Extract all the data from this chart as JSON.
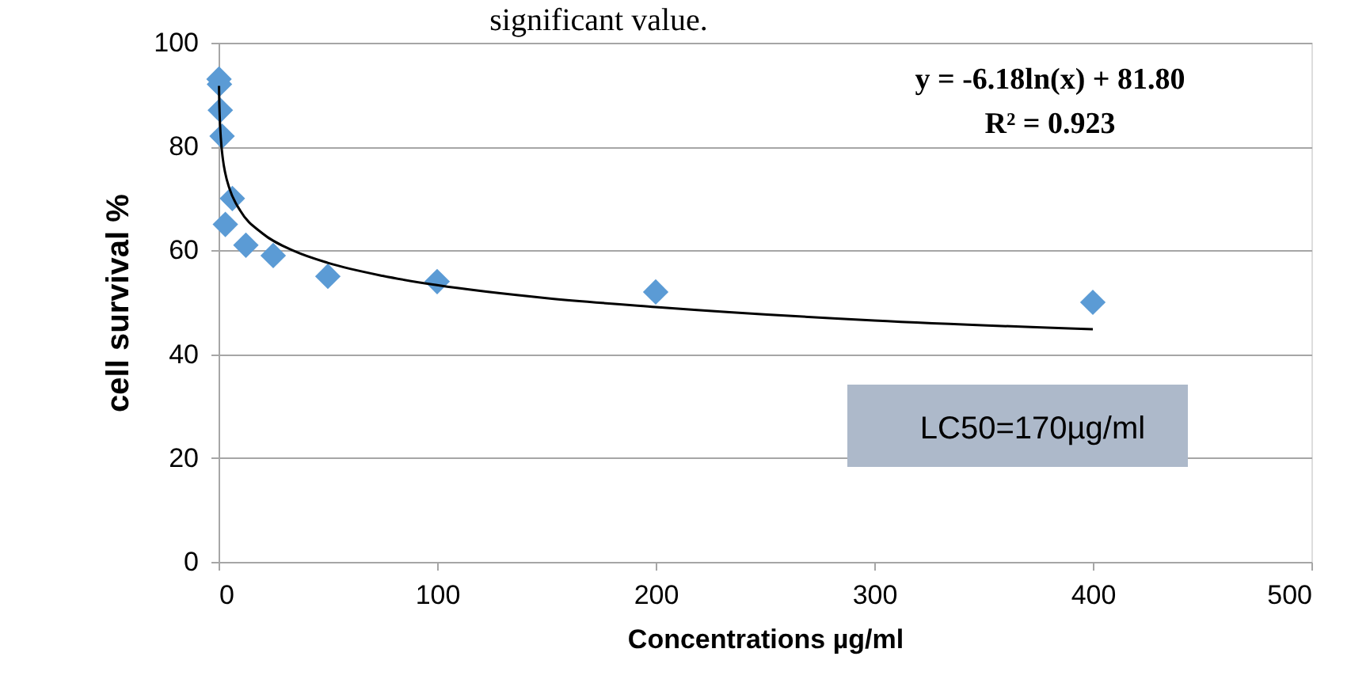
{
  "chart_data": {
    "type": "scatter",
    "title": "significant value.",
    "xlabel": "Concentrations µg/ml",
    "ylabel": "cell survival %",
    "annotations": [
      "y = -6.18ln(x) + 81.80",
      "R² = 0.923",
      "LC50=170µg/ml"
    ],
    "series": [
      {
        "color": "#5b9bd5",
        "marker": "diamond",
        "x": [
          0.2,
          0.4,
          0.8,
          1.6,
          3.1,
          6.3,
          12.5,
          25,
          50,
          100,
          200,
          400
        ],
        "values": [
          93,
          92,
          87,
          82,
          65,
          70,
          61,
          59,
          55,
          54,
          52,
          50
        ]
      },
      {
        "type": "line",
        "color": "#000000",
        "marker": "none",
        "x": [
          0.2,
          0.3,
          0.5,
          1,
          2,
          3,
          5,
          10,
          20,
          35,
          50,
          75,
          100,
          150,
          200,
          300,
          400
        ],
        "values": [
          91.7,
          89.2,
          86.1,
          81.8,
          77.5,
          75.0,
          71.9,
          67.6,
          63.3,
          59.8,
          57.6,
          55.1,
          53.3,
          50.8,
          49.1,
          46.5,
          44.8
        ]
      }
    ],
    "xlim": [
      0,
      500
    ],
    "xticks": [
      0,
      100,
      200,
      300,
      400,
      500
    ],
    "ylim": [
      0,
      100
    ],
    "yticks": [
      0,
      20,
      40,
      60,
      80,
      100
    ],
    "grid": "y"
  }
}
